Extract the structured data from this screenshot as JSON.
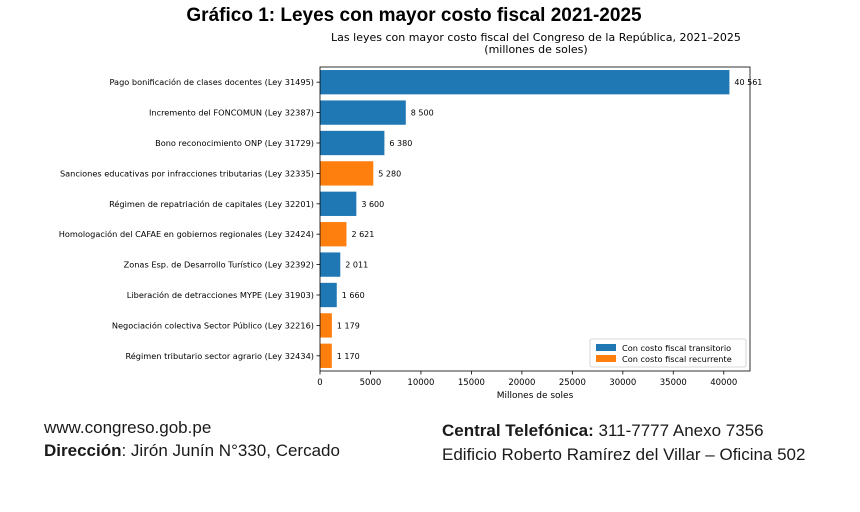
{
  "header": {
    "title": "Gráfico 1: Leyes con mayor costo fiscal 2021-2025"
  },
  "chart_data": {
    "type": "bar",
    "orientation": "horizontal",
    "title": "Las leyes con mayor costo fiscal del Congreso de la República, 2021–2025",
    "subtitle": "(millones de soles)",
    "xlabel": "Millones de soles",
    "ylabel": "",
    "xlim": [
      0,
      42600
    ],
    "xticks": [
      0,
      5000,
      10000,
      15000,
      20000,
      25000,
      30000,
      35000,
      40000
    ],
    "categories": [
      "Pago bonificación de clases docentes (Ley 31495)",
      "Incremento del FONCOMUN (Ley 32387)",
      "Bono reconocimiento ONP (Ley 31729)",
      "Sanciones educativas por infracciones tributarias (Ley 32335)",
      "Régimen de repatriación de capitales (Ley 32201)",
      "Homologación del CAFAE en gobiernos regionales (Ley 32424)",
      "Zonas Esp. de Desarrollo Turístico (Ley 32392)",
      "Liberación de detracciones MYPE (Ley 31903)",
      "Negociación colectiva Sector Público (Ley 32216)",
      "Régimen tributario sector agrario (Ley 32434)"
    ],
    "values": [
      40561,
      8500,
      6380,
      5280,
      3600,
      2621,
      2011,
      1660,
      1179,
      1170
    ],
    "value_labels": [
      "40 561",
      "8 500",
      "6 380",
      "5 280",
      "3 600",
      "2 621",
      "2 011",
      "1 660",
      "1 179",
      "1 170"
    ],
    "cost_type": [
      "transitorio",
      "transitorio",
      "transitorio",
      "recurrente",
      "transitorio",
      "recurrente",
      "transitorio",
      "transitorio",
      "recurrente",
      "recurrente"
    ],
    "legend": {
      "position": "lower-right",
      "entries": [
        {
          "key": "transitorio",
          "label": "Con costo fiscal transitorio",
          "color": "#1f77b4"
        },
        {
          "key": "recurrente",
          "label": "Con costo fiscal recurrente",
          "color": "#ff7f0e"
        }
      ]
    },
    "grid": false
  },
  "footer": {
    "website": "www.congreso.gob.pe",
    "address_label": "Dirección",
    "address_value": ": Jirón Junín N°330, Cercado",
    "phone_label": "Central Telefónica:",
    "phone_value": " 311-7777 Anexo 7356",
    "building": "Edificio Roberto Ramírez del Villar – Oficina 502"
  }
}
